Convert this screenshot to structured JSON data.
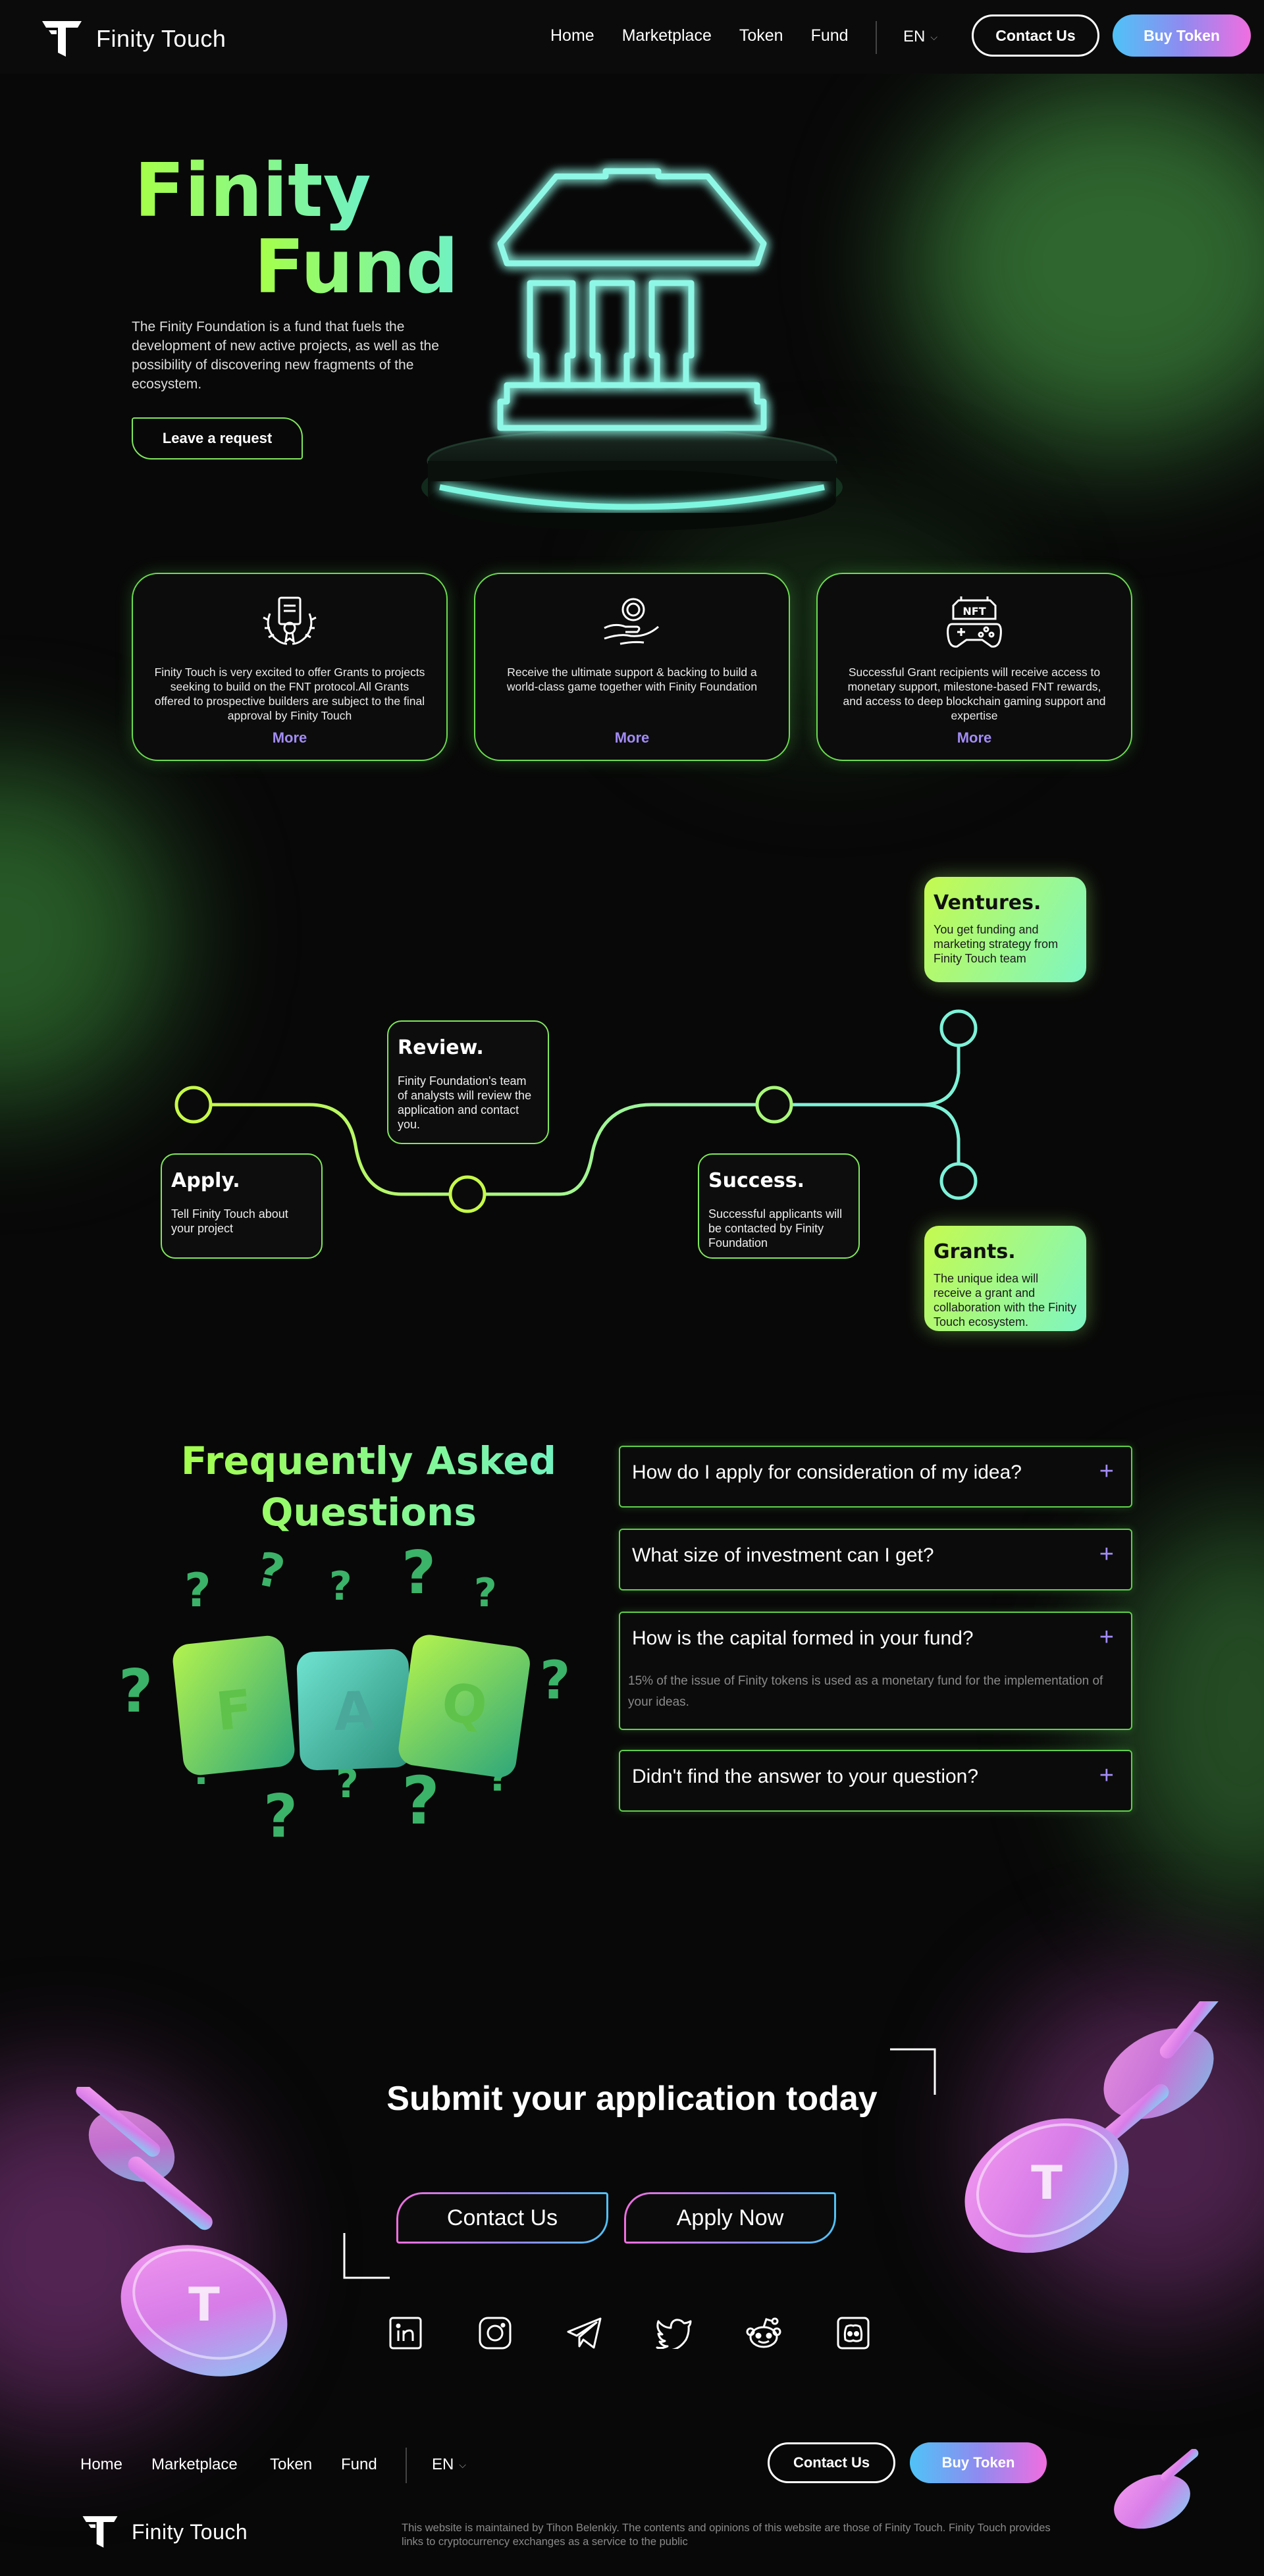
{
  "header": {
    "brand": "Finity Touch",
    "nav": [
      "Home",
      "Marketplace",
      "Token",
      "Fund"
    ],
    "language": "EN",
    "contact_label": "Contact Us",
    "buy_label": "Buy Token"
  },
  "hero": {
    "title_line1": "Finity",
    "title_line2": "Fund",
    "description": "The Finity Foundation is a fund that fuels the development of new active projects, as well as the possibility of discovering new fragments of the ecosystem.",
    "cta_label": "Leave a request"
  },
  "cards": [
    {
      "icon": "certificate-icon",
      "text": "Finity Touch is very excited to offer Grants to projects seeking to build on the FNT protocol.All Grants offered to prospective builders are subject to the final approval by Finity Touch",
      "more": "More"
    },
    {
      "icon": "coin-hand-icon",
      "text": "Receive the ultimate support & backing to build a world-class game together with Finity Foundation",
      "more": "More"
    },
    {
      "icon": "nft-gamepad-icon",
      "text": "Successful Grant recipients will receive access to monetary support, milestone-based FNT rewards, and access to deep blockchain gaming support and expertise",
      "more": "More"
    }
  ],
  "roadmap": {
    "apply": {
      "title": "Apply.",
      "text": "Tell Finity Touch about your project"
    },
    "review": {
      "title": "Review.",
      "text": "Finity Foundation's team of analysts will review the application and contact you."
    },
    "success": {
      "title": "Success.",
      "text": "Successful applicants will be contacted by Finity Foundation"
    },
    "ventures": {
      "title": "Ventures.",
      "text": "You get funding and marketing strategy from Finity Touch team"
    },
    "grants": {
      "title": "Grants.",
      "text": "The unique idea will receive a grant and collaboration with the Finity Touch ecosystem."
    }
  },
  "faq": {
    "title_line1": "Frequently Asked",
    "title_line2": "Questions",
    "cube_letters": [
      "F",
      "A",
      "Q"
    ],
    "items": [
      {
        "question": "How do I apply for consideration of my idea?",
        "answer": ""
      },
      {
        "question": "What size of investment can I get?",
        "answer": ""
      },
      {
        "question": "How is the capital formed in your fund?",
        "answer": "15% of the issue of Finity tokens is used as a monetary fund for the implementation of your ideas."
      },
      {
        "question": "Didn't find the answer to your question?",
        "answer": ""
      }
    ]
  },
  "submit": {
    "title": "Submit your application today",
    "contact_label": "Contact Us",
    "apply_label": "Apply Now"
  },
  "social": [
    "linkedin-icon",
    "instagram-icon",
    "telegram-icon",
    "twitter-icon",
    "reddit-icon",
    "discord-icon"
  ],
  "footer": {
    "nav": [
      "Home",
      "Marketplace",
      "Token",
      "Fund"
    ],
    "language": "EN",
    "contact_label": "Contact Us",
    "buy_label": "Buy Token",
    "brand": "Finity Touch",
    "note": "This website is maintained by Tihon Belenkiy. The contents and opinions of this website are those of Finity Touch. Finity Touch provides links to cryptocurrency exchanges as a service to the public"
  },
  "colors": {
    "accent_green": "#7fe85a",
    "accent_mint": "#6ff1c4",
    "accent_purple": "#a28cf5",
    "accent_pink": "#f06ee0",
    "accent_blue": "#4fc3f7"
  }
}
